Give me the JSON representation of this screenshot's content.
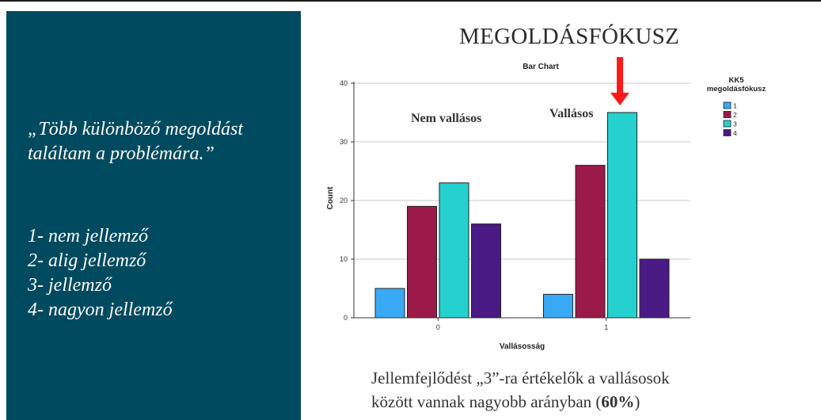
{
  "quote": {
    "line1": "„Több különböző megoldást",
    "line2": "találtam a problémára.”"
  },
  "scale": [
    "1- nem jellemző",
    "2- alig jellemző",
    "3- jellemző",
    "4- nagyon jellemző"
  ],
  "heading": "MEGOLDÁSFÓKUSZ",
  "annotations": {
    "group0": "Nem vallásos",
    "group1": "Vallásos",
    "arrow_color": "#ff1a1a"
  },
  "chart_data": {
    "type": "bar",
    "title": "Bar Chart",
    "xlabel": "Vallásosság",
    "ylabel": "Count",
    "categories": [
      "0",
      "1"
    ],
    "ylim": [
      0,
      40
    ],
    "yticks": [
      0,
      10,
      20,
      30,
      40
    ],
    "grid": true,
    "legend_title_lines": [
      "KK5",
      "megoldásfókusz"
    ],
    "legend_position": "top-right",
    "series": [
      {
        "name": "1",
        "color": "#3aa9f5",
        "values": [
          5,
          4
        ]
      },
      {
        "name": "2",
        "color": "#9c1a4a",
        "values": [
          19,
          26
        ]
      },
      {
        "name": "3",
        "color": "#24d1cf",
        "values": [
          23,
          35
        ]
      },
      {
        "name": "4",
        "color": "#4a1a85",
        "values": [
          16,
          10
        ]
      }
    ]
  },
  "caption": {
    "line1": "Jellemfejlődést „3”-ra értékelők a vallásosok",
    "line2_prefix": "között vannak nagyobb arányban (",
    "line2_bold": "60%",
    "line2_suffix": ")"
  }
}
